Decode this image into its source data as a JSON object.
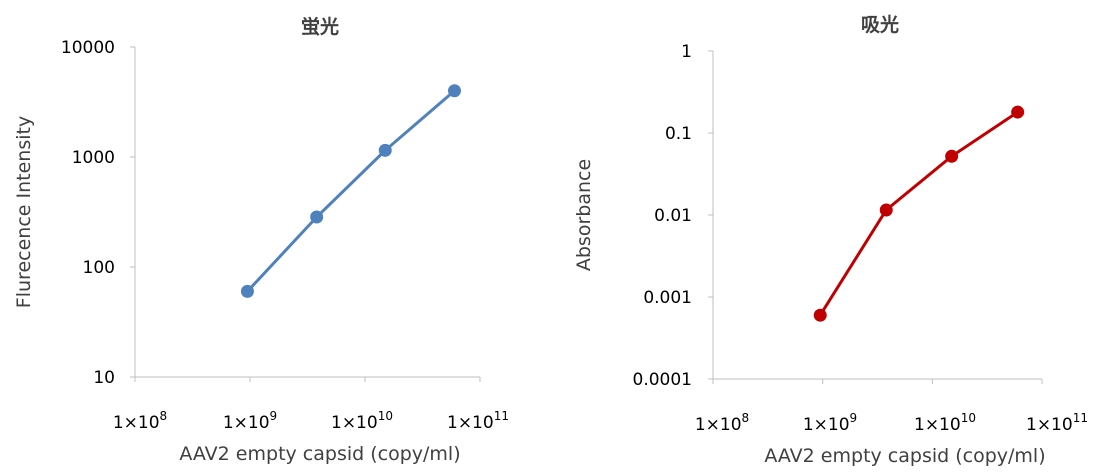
{
  "chart_data": [
    {
      "type": "line",
      "title": "蛍光",
      "xlabel": "AAV2 empty capsid (copy/ml)",
      "ylabel": "Flurecence Intensity",
      "x_scale": "log",
      "y_scale": "log",
      "xlim": [
        100000000,
        100000000000
      ],
      "ylim": [
        10,
        10000
      ],
      "x_ticks": [
        {
          "base": "1×10",
          "exp": "8"
        },
        {
          "base": "1×10",
          "exp": "9"
        },
        {
          "base": "1×10",
          "exp": "10"
        },
        {
          "base": "1×10",
          "exp": "11"
        }
      ],
      "y_tick_values": [
        10,
        100,
        1000,
        10000
      ],
      "y_tick_labels": [
        "10",
        "100",
        "1000",
        "10000"
      ],
      "grid": false,
      "color": "#4f81bd",
      "series": [
        {
          "x": [
            950000000,
            3800000000,
            15000000000,
            60000000000
          ],
          "y": [
            60,
            285,
            1150,
            4000
          ]
        }
      ]
    },
    {
      "type": "line",
      "title": "吸光",
      "xlabel": "AAV2 empty capsid (copy/ml)",
      "ylabel": "Absorbance",
      "x_scale": "log",
      "y_scale": "log",
      "xlim": [
        100000000,
        100000000000
      ],
      "ylim": [
        0.0001,
        1
      ],
      "x_ticks": [
        {
          "base": "1×10",
          "exp": "8"
        },
        {
          "base": "1×10",
          "exp": "9"
        },
        {
          "base": "1×10",
          "exp": "10"
        },
        {
          "base": "1×10",
          "exp": "11"
        }
      ],
      "y_tick_values": [
        0.0001,
        0.001,
        0.01,
        0.1,
        1
      ],
      "y_tick_labels": [
        "0.0001",
        "0.001",
        "0.01",
        "0.1",
        "1"
      ],
      "grid": false,
      "color": "#c00000",
      "series": [
        {
          "x": [
            950000000,
            3800000000,
            15000000000,
            60000000000
          ],
          "y": [
            0.0006,
            0.0115,
            0.052,
            0.18
          ]
        }
      ]
    }
  ]
}
